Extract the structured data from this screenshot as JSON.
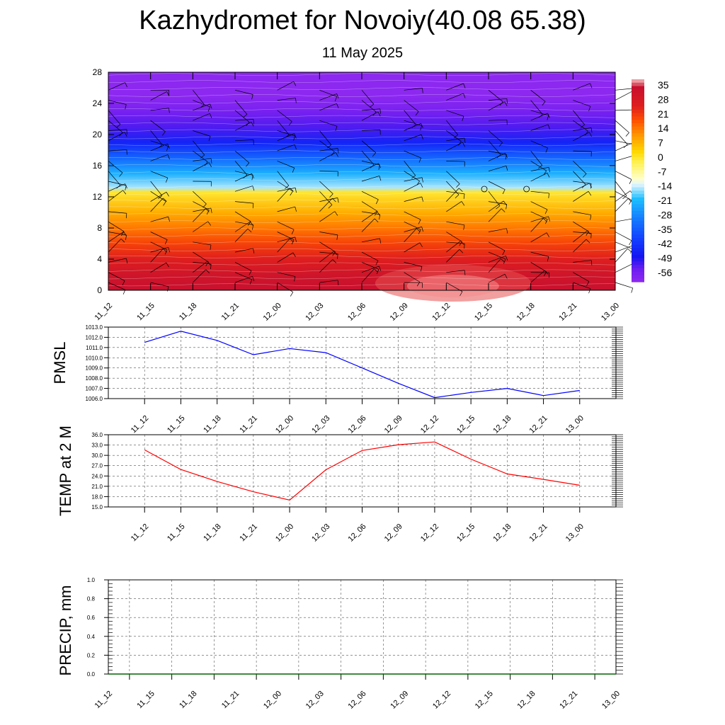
{
  "header": {
    "title": "Kazhydromet for Novoiy(40.08 65.38)",
    "date": "11 May 2025"
  },
  "chart_data": [
    {
      "type": "heatmap",
      "title": "",
      "xlabel": "",
      "ylabel": "",
      "x_ticks": [
        "11_12",
        "11_15",
        "11_18",
        "11_21",
        "12_00",
        "12_03",
        "12_06",
        "12_09",
        "12_12",
        "12_15",
        "12_18",
        "12_21",
        "13_00"
      ],
      "y_ticks": [
        "0",
        "4",
        "8",
        "12",
        "16",
        "20",
        "24",
        "28"
      ],
      "ylim": [
        0,
        28
      ],
      "colorbar_labels": [
        "35",
        "28",
        "21",
        "14",
        "7",
        "0",
        "-7",
        "-14",
        "-21",
        "-28",
        "-35",
        "-42",
        "-49",
        "-56"
      ],
      "zlim": [
        -60,
        38
      ],
      "overlay": "wind barbs",
      "calm_markers": [
        {
          "x": "12_15",
          "y": 13
        },
        {
          "x": "12_18",
          "y": 13
        }
      ],
      "layers": [
        {
          "level": 0,
          "value": 34
        },
        {
          "level": 2,
          "value": 31
        },
        {
          "level": 4,
          "value": 25
        },
        {
          "level": 6,
          "value": 20
        },
        {
          "level": 8,
          "value": 14
        },
        {
          "level": 10,
          "value": 8
        },
        {
          "level": 12.6,
          "value": 0
        },
        {
          "level": 13.2,
          "value": -15
        },
        {
          "level": 15,
          "value": -22
        },
        {
          "level": 17,
          "value": -33
        },
        {
          "level": 19,
          "value": -45
        },
        {
          "level": 21,
          "value": -52
        },
        {
          "level": 23,
          "value": -56
        },
        {
          "level": 25,
          "value": -60
        },
        {
          "level": 28,
          "value": -60
        }
      ],
      "colors": {
        "hot": "#c8102e",
        "warm": "#ff6a00",
        "yellow": "#ffe600",
        "cyan": "#21b6ff",
        "blue": "#1a1aff",
        "violet": "#8a2be2"
      }
    },
    {
      "type": "line",
      "title": "",
      "ylabel": "PMSL",
      "x": [
        "11_12",
        "11_15",
        "11_18",
        "11_21",
        "12_00",
        "12_03",
        "12_06",
        "12_09",
        "12_12",
        "12_15",
        "12_18",
        "12_21",
        "13_00"
      ],
      "y_ticks": [
        "1013.0",
        "1012.0",
        "1011.0",
        "1010.0",
        "1009.0",
        "1008.0",
        "1007.0",
        "1006.0"
      ],
      "ylim": [
        1006.0,
        1013.0
      ],
      "series": [
        {
          "values": [
            1011.5,
            1012.6,
            1011.7,
            1010.3,
            1010.9,
            1010.5,
            1009.0,
            1007.5,
            1006.1,
            1006.6,
            1007.0,
            1006.3,
            1006.8
          ],
          "color": "#0000ff"
        }
      ],
      "grid": true
    },
    {
      "type": "line",
      "title": "",
      "ylabel": "TEMP at 2 M",
      "x": [
        "11_12",
        "11_15",
        "11_18",
        "11_21",
        "12_00",
        "12_03",
        "12_06",
        "12_09",
        "12_12",
        "12_15",
        "12_18",
        "12_21",
        "13_00"
      ],
      "y_ticks": [
        "36.0",
        "33.0",
        "30.0",
        "27.0",
        "24.0",
        "21.0",
        "18.0",
        "15.0"
      ],
      "ylim": [
        15.0,
        36.0
      ],
      "series": [
        {
          "values": [
            31.6,
            25.9,
            22.4,
            19.4,
            17.0,
            25.8,
            31.4,
            33.1,
            33.9,
            28.9,
            24.6,
            23.0,
            21.3
          ],
          "color": "#ff0000"
        }
      ],
      "grid": true
    },
    {
      "type": "line",
      "title": "",
      "ylabel": "PRECIP, mm",
      "x": [
        "11_12",
        "11_15",
        "11_18",
        "11_21",
        "12_00",
        "12_03",
        "12_06",
        "12_09",
        "12_12",
        "12_15",
        "12_18",
        "12_21",
        "13_00"
      ],
      "y_ticks": [
        "1.0",
        "0.8",
        "0.6",
        "0.4",
        "0.2",
        "0.0"
      ],
      "ylim": [
        0.0,
        1.0
      ],
      "series": [
        {
          "values": [
            0.0,
            0.0,
            0.0,
            0.0,
            0.0,
            0.0,
            0.0,
            0.0,
            0.0,
            0.0,
            0.0,
            0.0,
            0.0
          ],
          "color": "#006400"
        }
      ],
      "grid": true
    }
  ]
}
